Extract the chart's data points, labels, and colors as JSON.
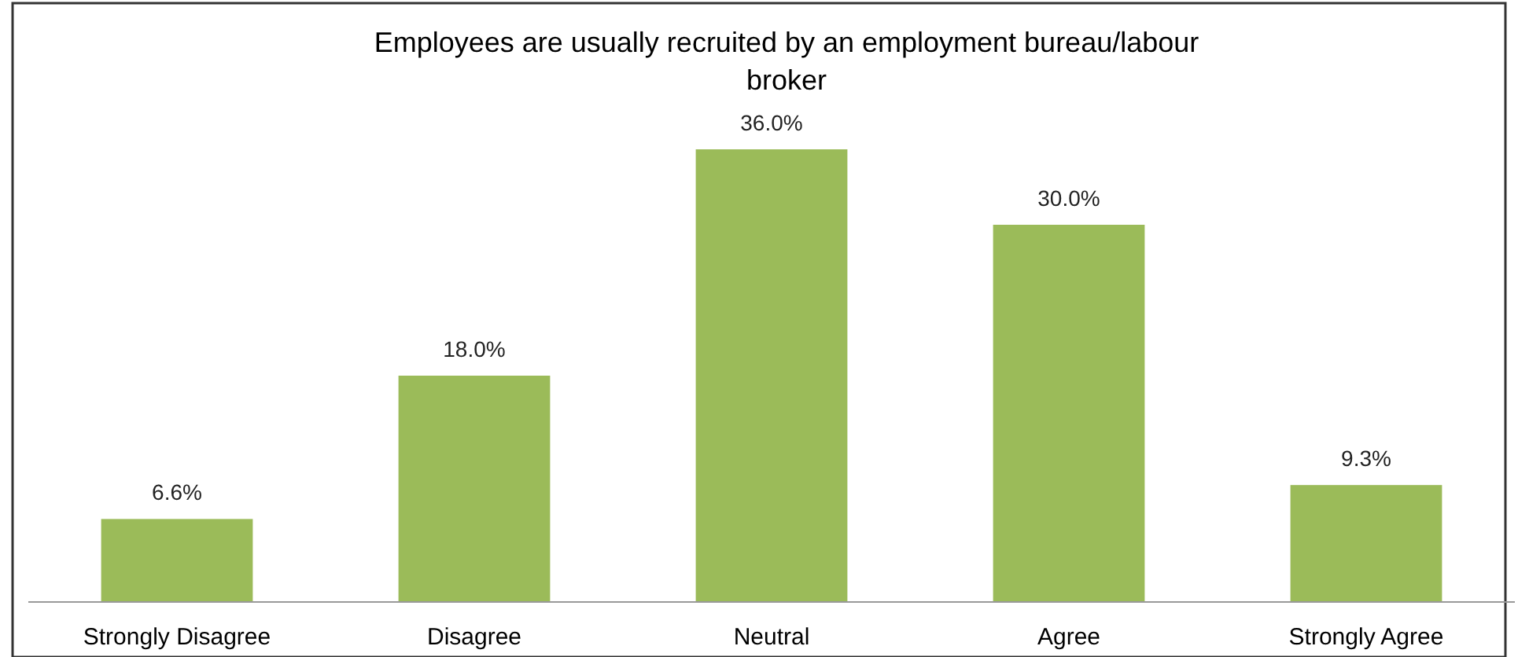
{
  "chart_data": {
    "type": "bar",
    "title": "Employees are usually recruited by an employment bureau/labour broker",
    "categories": [
      "Strongly Disagree",
      "Disagree",
      "Neutral",
      "Agree",
      "Strongly Agree"
    ],
    "values": [
      6.6,
      18.0,
      36.0,
      30.0,
      9.3
    ],
    "value_labels": [
      "6.6%",
      "18.0%",
      "36.0%",
      "30.0%",
      "9.3%"
    ],
    "color": "#9bbb59"
  }
}
